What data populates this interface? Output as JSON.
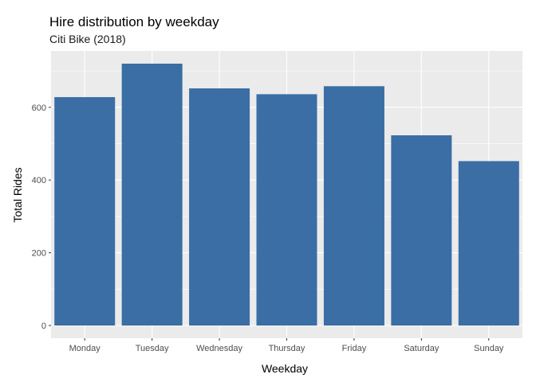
{
  "chart_data": {
    "type": "bar",
    "title": "Hire distribution by weekday",
    "subtitle": "Citi Bike (2018)",
    "xlabel": "Weekday",
    "ylabel": "Total Rides",
    "categories": [
      "Monday",
      "Tuesday",
      "Wednesday",
      "Thursday",
      "Friday",
      "Saturday",
      "Sunday"
    ],
    "values": [
      628,
      720,
      652,
      636,
      658,
      523,
      452
    ],
    "yticks": [
      0,
      200,
      400,
      600
    ],
    "ylim": [
      -35,
      755
    ],
    "grid": true,
    "bar_color": "#3A6EA5",
    "panel_color": "#EBEBEB",
    "grid_color": "#FFFFFF"
  }
}
